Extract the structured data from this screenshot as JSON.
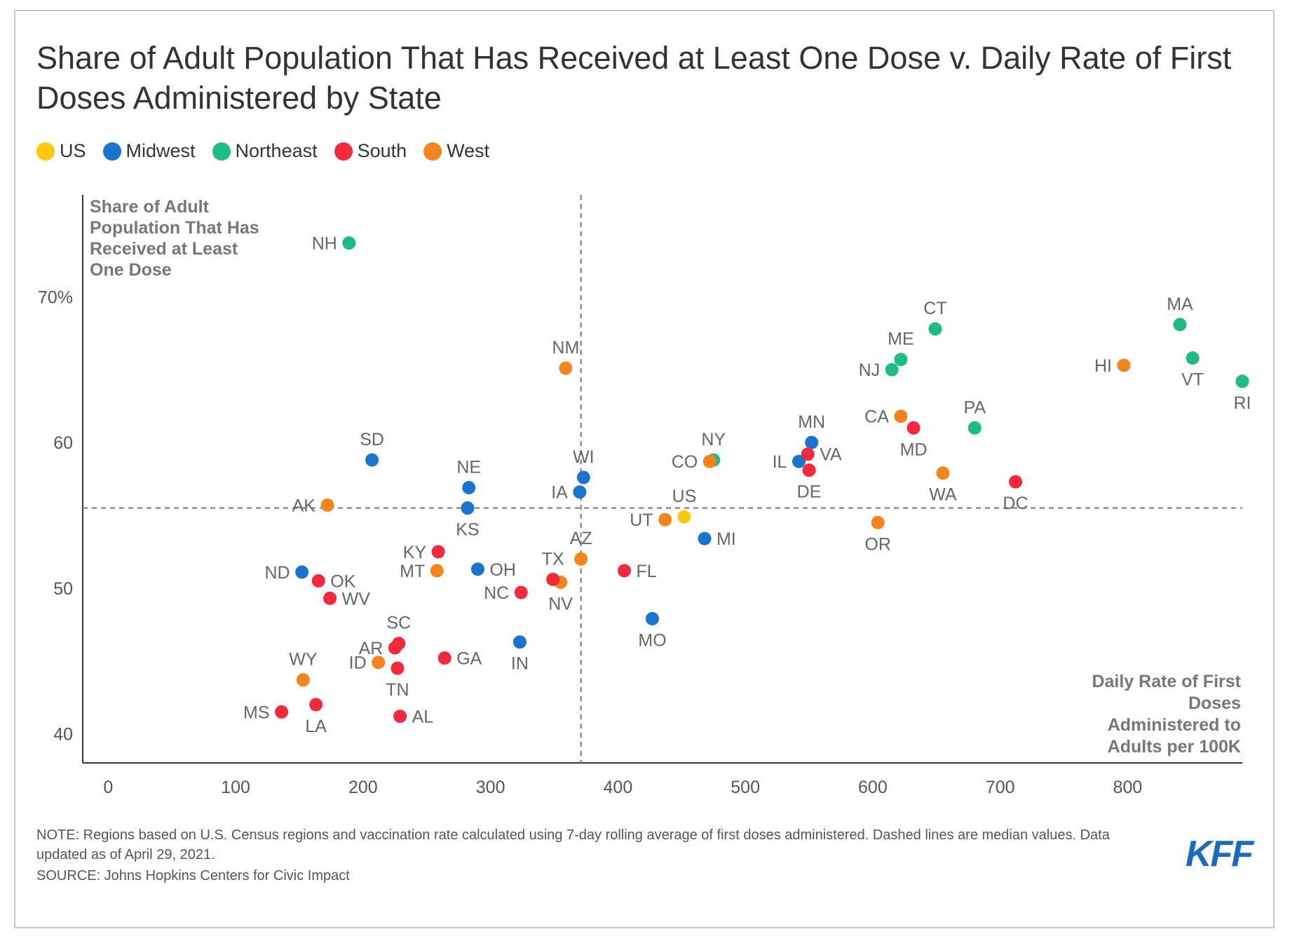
{
  "title": "Share of Adult Population That Has Received at Least One Dose v. Daily Rate of First Doses Administered by State",
  "note": "NOTE: Regions based on U.S. Census regions and vaccination rate calculated using 7-day rolling average of first doses administered. Dashed lines are median values. Data updated as of April 29, 2021.",
  "source": "SOURCE: Johns Hopkins Centers for Civic Impact",
  "logo": "KFF",
  "chart_data": {
    "type": "scatter",
    "ylabel": "Share of Adult Population That Has Received at Least One Dose",
    "xlabel": "Daily Rate of First Doses Administered to Adults per 100K",
    "xlim": [
      -20,
      890
    ],
    "ylim": [
      38,
      77
    ],
    "x_ticks": [
      0,
      100,
      200,
      300,
      400,
      500,
      600,
      700,
      800
    ],
    "x_tick_labels": [
      "0",
      "100",
      "200",
      "300",
      "400",
      "500",
      "600",
      "700",
      "800"
    ],
    "y_ticks": [
      40,
      50,
      60,
      70
    ],
    "y_tick_labels": [
      "40",
      "50",
      "60",
      "70%"
    ],
    "median_x": 371,
    "median_y": 55.5,
    "grid": false,
    "legend_position": "top-left",
    "regions": [
      {
        "name": "US",
        "color": "#ffc90a"
      },
      {
        "name": "Midwest",
        "color": "#1a73cf"
      },
      {
        "name": "Northeast",
        "color": "#1fbb85"
      },
      {
        "name": "South",
        "color": "#f5283c"
      },
      {
        "name": "West",
        "color": "#f5841f"
      }
    ],
    "points": [
      {
        "label": "NH",
        "region": "Northeast",
        "x": 189,
        "y": 73.7,
        "pos": "left"
      },
      {
        "label": "CT",
        "region": "Northeast",
        "x": 649,
        "y": 67.8,
        "pos": "above"
      },
      {
        "label": "MA",
        "region": "Northeast",
        "x": 841,
        "y": 68.1,
        "pos": "above"
      },
      {
        "label": "ME",
        "region": "Northeast",
        "x": 622,
        "y": 65.7,
        "pos": "above"
      },
      {
        "label": "NJ",
        "region": "Northeast",
        "x": 615,
        "y": 65.0,
        "pos": "left"
      },
      {
        "label": "VT",
        "region": "Northeast",
        "x": 851,
        "y": 65.8,
        "pos": "below"
      },
      {
        "label": "RI",
        "region": "Northeast",
        "x": 890,
        "y": 64.2,
        "pos": "below"
      },
      {
        "label": "PA",
        "region": "Northeast",
        "x": 680,
        "y": 61.0,
        "pos": "above"
      },
      {
        "label": "NY",
        "region": "Northeast",
        "x": 475,
        "y": 58.8,
        "pos": "above"
      },
      {
        "label": "HI",
        "region": "West",
        "x": 797,
        "y": 65.3,
        "pos": "left"
      },
      {
        "label": "NM",
        "region": "West",
        "x": 359,
        "y": 65.1,
        "pos": "above"
      },
      {
        "label": "CA",
        "region": "West",
        "x": 622,
        "y": 61.8,
        "pos": "left"
      },
      {
        "label": "CO",
        "region": "West",
        "x": 472,
        "y": 58.7,
        "pos": "left"
      },
      {
        "label": "WA",
        "region": "West",
        "x": 655,
        "y": 57.9,
        "pos": "below"
      },
      {
        "label": "AK",
        "region": "West",
        "x": 172,
        "y": 55.7,
        "pos": "left"
      },
      {
        "label": "UT",
        "region": "West",
        "x": 437,
        "y": 54.7,
        "pos": "left"
      },
      {
        "label": "OR",
        "region": "West",
        "x": 604,
        "y": 54.5,
        "pos": "below"
      },
      {
        "label": "AZ",
        "region": "West",
        "x": 371,
        "y": 52.0,
        "pos": "above"
      },
      {
        "label": "MT",
        "region": "West",
        "x": 258,
        "y": 51.2,
        "pos": "left"
      },
      {
        "label": "NV",
        "region": "West",
        "x": 355,
        "y": 50.4,
        "pos": "below"
      },
      {
        "label": "ID",
        "region": "West",
        "x": 212,
        "y": 44.9,
        "pos": "left"
      },
      {
        "label": "WY",
        "region": "West",
        "x": 153,
        "y": 43.7,
        "pos": "above"
      },
      {
        "label": "SD",
        "region": "Midwest",
        "x": 207,
        "y": 58.8,
        "pos": "above"
      },
      {
        "label": "MN",
        "region": "Midwest",
        "x": 552,
        "y": 60.0,
        "pos": "above"
      },
      {
        "label": "IL",
        "region": "Midwest",
        "x": 542,
        "y": 58.7,
        "pos": "left"
      },
      {
        "label": "NE",
        "region": "Midwest",
        "x": 283,
        "y": 56.9,
        "pos": "above"
      },
      {
        "label": "WI",
        "region": "Midwest",
        "x": 373,
        "y": 57.6,
        "pos": "above"
      },
      {
        "label": "IA",
        "region": "Midwest",
        "x": 370,
        "y": 56.6,
        "pos": "left"
      },
      {
        "label": "KS",
        "region": "Midwest",
        "x": 282,
        "y": 55.5,
        "pos": "below"
      },
      {
        "label": "MI",
        "region": "Midwest",
        "x": 468,
        "y": 53.4,
        "pos": "right"
      },
      {
        "label": "ND",
        "region": "Midwest",
        "x": 152,
        "y": 51.1,
        "pos": "left"
      },
      {
        "label": "OH",
        "region": "Midwest",
        "x": 290,
        "y": 51.3,
        "pos": "right"
      },
      {
        "label": "MO",
        "region": "Midwest",
        "x": 427,
        "y": 47.9,
        "pos": "below"
      },
      {
        "label": "IN",
        "region": "Midwest",
        "x": 323,
        "y": 46.3,
        "pos": "below"
      },
      {
        "label": "MD",
        "region": "South",
        "x": 632,
        "y": 61.0,
        "pos": "below"
      },
      {
        "label": "VA",
        "region": "South",
        "x": 549,
        "y": 59.2,
        "pos": "right"
      },
      {
        "label": "DE",
        "region": "South",
        "x": 550,
        "y": 58.1,
        "pos": "below"
      },
      {
        "label": "DC",
        "region": "South",
        "x": 712,
        "y": 57.3,
        "pos": "below"
      },
      {
        "label": "KY",
        "region": "South",
        "x": 259,
        "y": 52.5,
        "pos": "left"
      },
      {
        "label": "FL",
        "region": "South",
        "x": 405,
        "y": 51.2,
        "pos": "right"
      },
      {
        "label": "OK",
        "region": "South",
        "x": 165,
        "y": 50.5,
        "pos": "right"
      },
      {
        "label": "TX",
        "region": "South",
        "x": 349,
        "y": 50.6,
        "pos": "above"
      },
      {
        "label": "NC",
        "region": "South",
        "x": 324,
        "y": 49.7,
        "pos": "left"
      },
      {
        "label": "WV",
        "region": "South",
        "x": 174,
        "y": 49.3,
        "pos": "right"
      },
      {
        "label": "SC",
        "region": "South",
        "x": 228,
        "y": 46.2,
        "pos": "above"
      },
      {
        "label": "AR",
        "region": "South",
        "x": 225,
        "y": 45.9,
        "pos": "left"
      },
      {
        "label": "GA",
        "region": "South",
        "x": 264,
        "y": 45.2,
        "pos": "right"
      },
      {
        "label": "TN",
        "region": "South",
        "x": 227,
        "y": 44.5,
        "pos": "below"
      },
      {
        "label": "MS",
        "region": "South",
        "x": 136,
        "y": 41.5,
        "pos": "left"
      },
      {
        "label": "LA",
        "region": "South",
        "x": 163,
        "y": 42.0,
        "pos": "below"
      },
      {
        "label": "AL",
        "region": "South",
        "x": 229,
        "y": 41.2,
        "pos": "right"
      },
      {
        "label": "US",
        "region": "US",
        "x": 452,
        "y": 54.9,
        "pos": "above"
      }
    ]
  }
}
